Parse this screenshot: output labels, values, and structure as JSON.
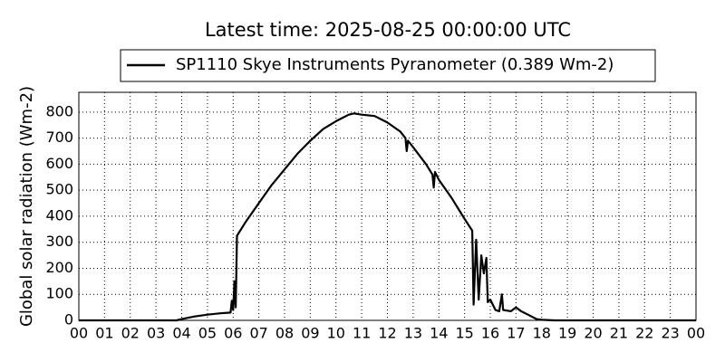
{
  "chart_data": {
    "type": "line",
    "title": "Latest time: 2025-08-25 00:00:00 UTC",
    "y_label": "Global solar radiation (Wm-2)",
    "series": [
      {
        "name": "SP1110 Skye Instruments Pyranometer (0.389 Wm-2)",
        "color": "#000000",
        "x": [
          0,
          1,
          2,
          3,
          3.8,
          4,
          4.5,
          5,
          5.5,
          5.9,
          5.95,
          6.0,
          6.05,
          6.1,
          6.15,
          6.5,
          7,
          7.5,
          8,
          8.5,
          9,
          9.5,
          10,
          10.5,
          10.7,
          11,
          11.5,
          12,
          12.5,
          12.7,
          12.75,
          12.8,
          13,
          13.5,
          13.75,
          13.8,
          13.85,
          14,
          14.5,
          15,
          15.3,
          15.35,
          15.45,
          15.55,
          15.65,
          15.75,
          15.85,
          15.9,
          16,
          16.2,
          16.35,
          16.45,
          16.5,
          16.8,
          17,
          17.2,
          17.5,
          17.8,
          18,
          18.5,
          24
        ],
        "values": [
          0,
          0,
          0,
          0,
          0,
          5,
          15,
          22,
          27,
          30,
          75,
          40,
          150,
          50,
          325,
          380,
          450,
          520,
          580,
          640,
          690,
          735,
          765,
          790,
          795,
          790,
          785,
          760,
          725,
          700,
          650,
          690,
          665,
          600,
          560,
          510,
          570,
          540,
          470,
          390,
          345,
          60,
          310,
          80,
          250,
          180,
          240,
          70,
          80,
          40,
          35,
          100,
          40,
          35,
          50,
          35,
          20,
          5,
          2,
          0,
          0
        ]
      }
    ],
    "xlim": [
      0,
      24
    ],
    "xticks": [
      {
        "value": 0,
        "label": "00"
      },
      {
        "value": 1,
        "label": "01"
      },
      {
        "value": 2,
        "label": "02"
      },
      {
        "value": 3,
        "label": "03"
      },
      {
        "value": 4,
        "label": "04"
      },
      {
        "value": 5,
        "label": "05"
      },
      {
        "value": 6,
        "label": "06"
      },
      {
        "value": 7,
        "label": "07"
      },
      {
        "value": 8,
        "label": "08"
      },
      {
        "value": 9,
        "label": "09"
      },
      {
        "value": 10,
        "label": "10"
      },
      {
        "value": 11,
        "label": "11"
      },
      {
        "value": 12,
        "label": "12"
      },
      {
        "value": 13,
        "label": "13"
      },
      {
        "value": 14,
        "label": "14"
      },
      {
        "value": 15,
        "label": "15"
      },
      {
        "value": 16,
        "label": "16"
      },
      {
        "value": 17,
        "label": "17"
      },
      {
        "value": 18,
        "label": "18"
      },
      {
        "value": 19,
        "label": "19"
      },
      {
        "value": 20,
        "label": "20"
      },
      {
        "value": 21,
        "label": "21"
      },
      {
        "value": 22,
        "label": "22"
      },
      {
        "value": 23,
        "label": "23"
      },
      {
        "value": 24,
        "label": "00"
      }
    ],
    "ylim": [
      0,
      876
    ],
    "yticks": [
      0,
      100,
      200,
      300,
      400,
      500,
      600,
      700,
      800
    ],
    "grid": true,
    "legend": "top"
  }
}
